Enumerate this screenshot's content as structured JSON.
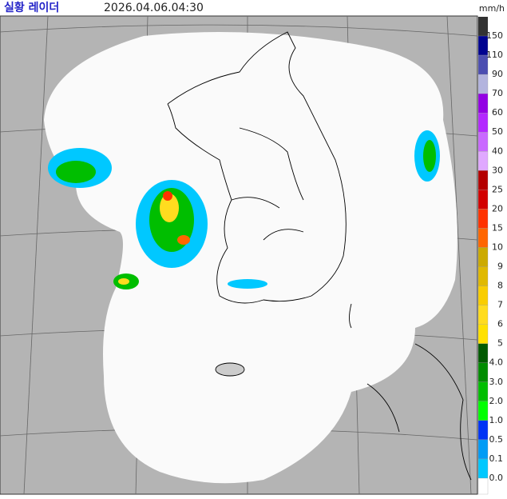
{
  "header": {
    "title": "실황 레이더",
    "time": "2026.04.06.04:30"
  },
  "legend": {
    "unit": "mm/h",
    "items": [
      {
        "label": "150",
        "color": "#000390"
      },
      {
        "label": "110",
        "color": "#4c4eb1"
      },
      {
        "label": "90",
        "color": "#b3b4de"
      },
      {
        "label": "70",
        "color": "#9300e4"
      },
      {
        "label": "60",
        "color": "#b329ff"
      },
      {
        "label": "50",
        "color": "#c969ff"
      },
      {
        "label": "40",
        "color": "#e0a9ff"
      },
      {
        "label": "30",
        "color": "#b40000"
      },
      {
        "label": "25",
        "color": "#d20000"
      },
      {
        "label": "20",
        "color": "#ff3200"
      },
      {
        "label": "15",
        "color": "#ff6600"
      },
      {
        "label": "10",
        "color": "#ccaa00"
      },
      {
        "label": "9",
        "color": "#e0b900"
      },
      {
        "label": "8",
        "color": "#f9cd00"
      },
      {
        "label": "7",
        "color": "#ffdc1f"
      },
      {
        "label": "6",
        "color": "#ffe100"
      },
      {
        "label": "5",
        "color": "#005a00"
      },
      {
        "label": "4.0",
        "color": "#008c00"
      },
      {
        "label": "3.0",
        "color": "#00be00"
      },
      {
        "label": "2.0",
        "color": "#00ff00"
      },
      {
        "label": "1.0",
        "color": "#0033f5"
      },
      {
        "label": "0.5",
        "color": "#009bf5"
      },
      {
        "label": "0.1",
        "color": "#00c8ff"
      },
      {
        "label": "0.0",
        "color": "#ffffff"
      }
    ]
  }
}
